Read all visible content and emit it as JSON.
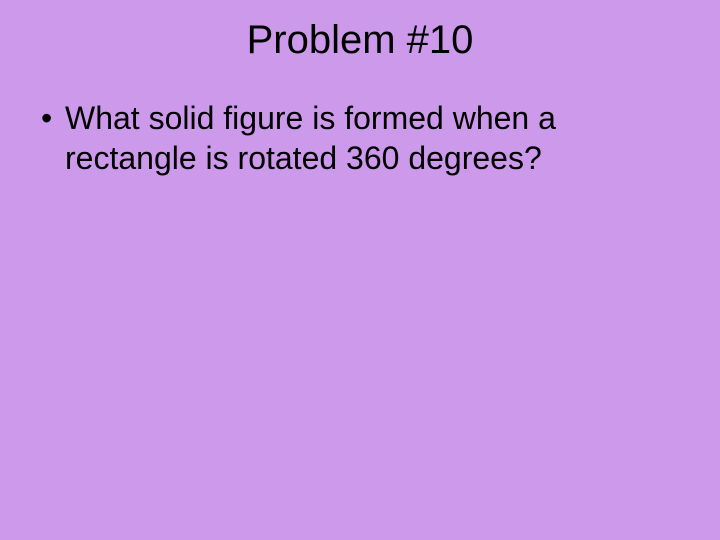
{
  "slide": {
    "title": "Problem #10",
    "bullets": [
      "What solid figure is formed when a rectangle is rotated 360 degrees?"
    ],
    "background_color": "#cc99eb",
    "text_color": "#000000",
    "title_fontsize": 40,
    "body_fontsize": 32,
    "font_family": "Arial"
  }
}
